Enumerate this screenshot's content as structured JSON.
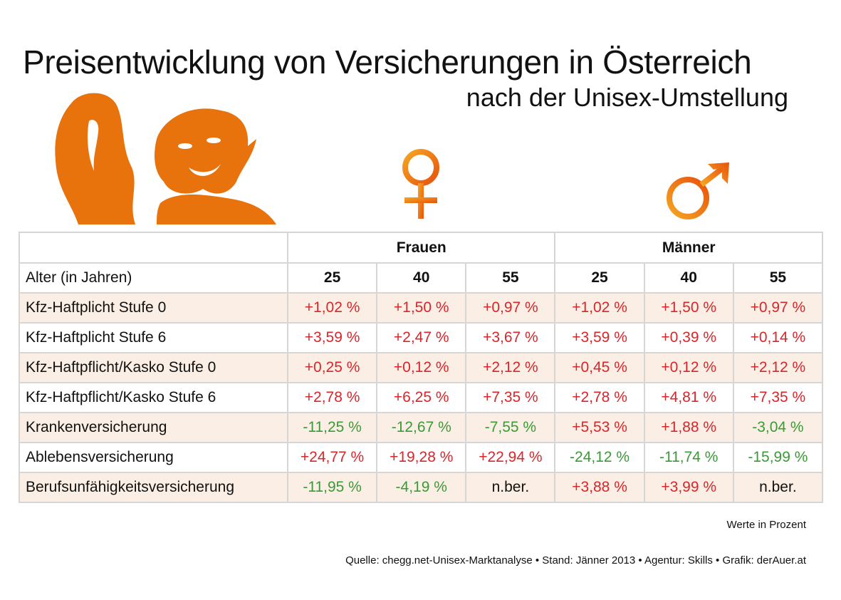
{
  "title": "Preisentwicklung von Versicherungen in Österreich",
  "subtitle": "nach der Unisex-Umstellung",
  "colors": {
    "accent": "#e8720c",
    "increase": "#d8262b",
    "decrease": "#3a9a35",
    "row_shade": "#fbefe5"
  },
  "icons": {
    "female": "female-symbol-icon",
    "male": "male-symbol-icon"
  },
  "chart_data": {
    "type": "table",
    "groups": [
      "Frauen",
      "Männer"
    ],
    "row_header": "Alter (in Jahren)",
    "columns": [
      "25",
      "40",
      "55",
      "25",
      "40",
      "55"
    ],
    "rows": [
      {
        "label": "Kfz-Haftplicht Stufe 0",
        "values": [
          "+1,02 %",
          "+1,50 %",
          "+0,97 %",
          "+1,02 %",
          "+1,50 %",
          "+0,97 %"
        ]
      },
      {
        "label": "Kfz-Haftplicht Stufe 6",
        "values": [
          "+3,59 %",
          "+2,47 %",
          "+3,67 %",
          "+3,59 %",
          "+0,39 %",
          "+0,14 %"
        ]
      },
      {
        "label": "Kfz-Haftpflicht/Kasko Stufe 0",
        "values": [
          "+0,25 %",
          "+0,12 %",
          "+2,12 %",
          "+0,45 %",
          "+0,12 %",
          "+2,12 %"
        ]
      },
      {
        "label": "Kfz-Haftpflicht/Kasko Stufe 6",
        "values": [
          "+2,78 %",
          "+6,25 %",
          "+7,35 %",
          "+2,78 %",
          "+4,81 %",
          "+7,35 %"
        ]
      },
      {
        "label": "Krankenversicherung",
        "values": [
          "-11,25 %",
          "-12,67 %",
          "-7,55 %",
          "+5,53 %",
          "+1,88 %",
          "-3,04 %"
        ]
      },
      {
        "label": "Ablebensversicherung",
        "values": [
          "+24,77 %",
          "+19,28 %",
          "+22,94 %",
          "-24,12 %",
          "-11,74 %",
          "-15,99 %"
        ]
      },
      {
        "label": "Berufsunfähigkeitsversicherung",
        "values": [
          "-11,95 %",
          "-4,19 %",
          "n.ber.",
          "+3,88 %",
          "+3,99 %",
          "n.ber."
        ]
      }
    ],
    "unit_note": "Werte in Prozent"
  },
  "source": "Quelle: chegg.net-Unisex-Marktanalyse • Stand: Jänner 2013 • Agentur: Skills • Grafik: derAuer.at"
}
